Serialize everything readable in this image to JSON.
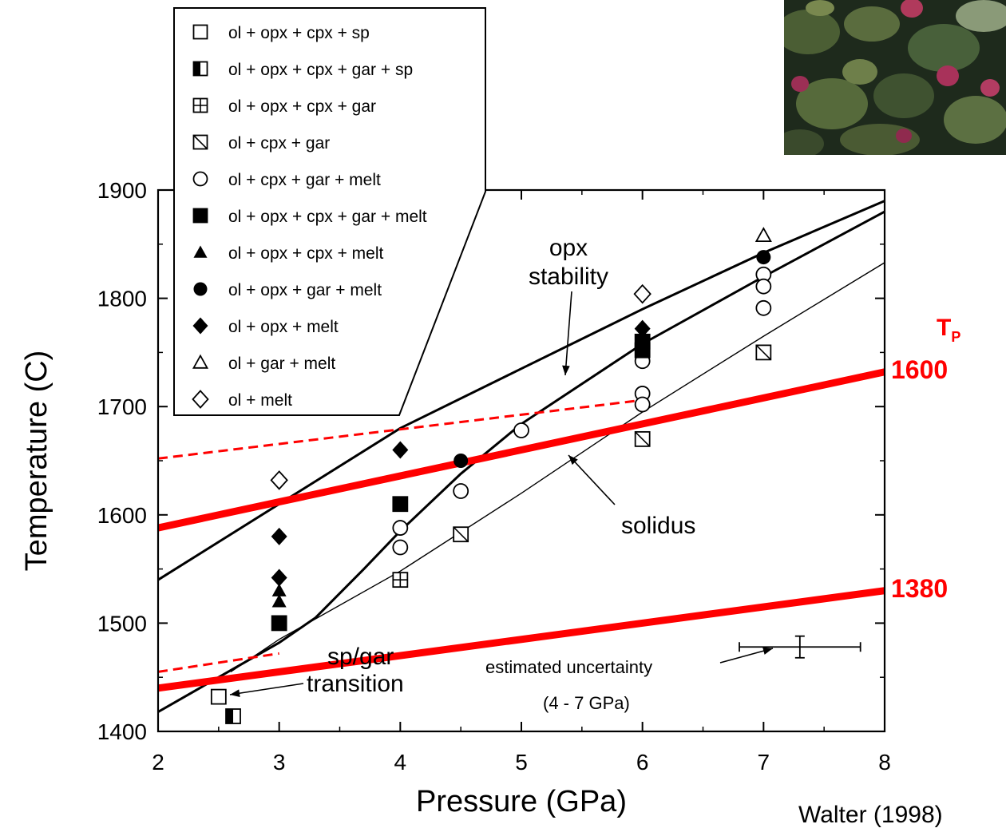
{
  "chart_data": {
    "type": "scatter",
    "xlabel": "Pressure (GPa)",
    "ylabel": "Temperature (C)",
    "xlim": [
      2,
      8
    ],
    "ylim": [
      1400,
      1900
    ],
    "xticks": [
      2,
      3,
      4,
      5,
      6,
      7,
      8
    ],
    "yticks": [
      1400,
      1500,
      1600,
      1700,
      1800,
      1900
    ],
    "grid": false,
    "legend_position": "top-left",
    "legend": [
      {
        "key": "ol_opx_cpx_sp",
        "label": "ol + opx + cpx + sp",
        "marker": "square-open"
      },
      {
        "key": "ol_opx_cpx_gar_sp",
        "label": "ol + opx + cpx + gar + sp",
        "marker": "square-half"
      },
      {
        "key": "ol_opx_cpx_gar",
        "label": "ol + opx + cpx + gar",
        "marker": "square-cross"
      },
      {
        "key": "ol_cpx_gar",
        "label": "ol + cpx + gar",
        "marker": "square-slash"
      },
      {
        "key": "ol_cpx_gar_melt",
        "label": "ol + cpx + gar + melt",
        "marker": "circle-open"
      },
      {
        "key": "ol_opx_cpx_gar_melt",
        "label": "ol + opx + cpx + gar + melt",
        "marker": "square-filled"
      },
      {
        "key": "ol_opx_cpx_melt",
        "label": "ol + opx + cpx + melt",
        "marker": "triangle-filled"
      },
      {
        "key": "ol_opx_gar_melt",
        "label": "ol + opx + gar + melt",
        "marker": "circle-filled"
      },
      {
        "key": "ol_opx_melt",
        "label": "ol + opx + melt",
        "marker": "diamond-filled"
      },
      {
        "key": "ol_gar_melt",
        "label": "ol + gar + melt",
        "marker": "triangle-open"
      },
      {
        "key": "ol_melt",
        "label": "ol + melt",
        "marker": "diamond-open"
      }
    ],
    "series": [
      {
        "key": "ol_opx_cpx_sp",
        "points": [
          [
            2.5,
            1432
          ]
        ]
      },
      {
        "key": "ol_opx_cpx_gar_sp",
        "points": [
          [
            2.62,
            1414
          ]
        ]
      },
      {
        "key": "ol_opx_cpx_gar",
        "points": [
          [
            4,
            1540
          ]
        ]
      },
      {
        "key": "ol_cpx_gar",
        "points": [
          [
            4.5,
            1582
          ],
          [
            6,
            1670
          ],
          [
            7,
            1750
          ]
        ]
      },
      {
        "key": "ol_cpx_gar_melt",
        "points": [
          [
            4,
            1588
          ],
          [
            4,
            1570
          ],
          [
            4.5,
            1622
          ],
          [
            5,
            1678
          ],
          [
            6,
            1742
          ],
          [
            6,
            1712
          ],
          [
            6,
            1702
          ],
          [
            7,
            1822
          ],
          [
            7,
            1811
          ],
          [
            7,
            1791
          ]
        ]
      },
      {
        "key": "ol_opx_cpx_gar_melt",
        "points": [
          [
            3,
            1500
          ],
          [
            4,
            1610
          ],
          [
            6,
            1752
          ],
          [
            6,
            1760
          ]
        ]
      },
      {
        "key": "ol_opx_cpx_melt",
        "points": [
          [
            3,
            1530
          ],
          [
            3,
            1520
          ]
        ]
      },
      {
        "key": "ol_opx_gar_melt",
        "points": [
          [
            4.5,
            1650
          ],
          [
            7,
            1838
          ]
        ]
      },
      {
        "key": "ol_opx_melt",
        "points": [
          [
            3,
            1580
          ],
          [
            3,
            1542
          ],
          [
            4,
            1660
          ],
          [
            6,
            1772
          ]
        ]
      },
      {
        "key": "ol_gar_melt",
        "points": [
          [
            7,
            1858
          ]
        ]
      },
      {
        "key": "ol_melt",
        "points": [
          [
            3,
            1632
          ],
          [
            6,
            1804
          ]
        ]
      }
    ],
    "curves": [
      {
        "name": "opx stability",
        "points": [
          [
            2,
            1540
          ],
          [
            3,
            1610
          ],
          [
            4,
            1680
          ],
          [
            5,
            1735
          ],
          [
            6,
            1790
          ],
          [
            7,
            1842
          ],
          [
            8,
            1890
          ]
        ]
      },
      {
        "name": "solidus",
        "points": [
          [
            2,
            1418
          ],
          [
            2.5,
            1450
          ],
          [
            3,
            1482
          ],
          [
            3.3,
            1505
          ],
          [
            3.7,
            1550
          ],
          [
            4,
            1585
          ],
          [
            4.5,
            1638
          ],
          [
            5,
            1684
          ],
          [
            6,
            1758
          ],
          [
            7,
            1820
          ],
          [
            8,
            1880
          ]
        ]
      },
      {
        "name": "",
        "points": [
          [
            2.6,
            1455
          ],
          [
            3,
            1485
          ],
          [
            4,
            1548
          ],
          [
            5,
            1620
          ],
          [
            6,
            1695
          ],
          [
            7,
            1765
          ],
          [
            8,
            1833
          ]
        ]
      }
    ],
    "adiabats": [
      {
        "potential_temperature": "1600",
        "solid": [
          [
            2,
            1588
          ],
          [
            8,
            1732
          ]
        ],
        "dashed": [
          [
            2,
            1652
          ],
          [
            6,
            1706
          ]
        ]
      },
      {
        "potential_temperature": "1380",
        "solid": [
          [
            2,
            1440
          ],
          [
            8,
            1530
          ]
        ],
        "dashed": [
          [
            2,
            1455
          ],
          [
            3,
            1472
          ]
        ]
      }
    ],
    "annotations": {
      "opx_stability_line1": "opx",
      "opx_stability_line2": "stability",
      "solidus": "solidus",
      "sp_gar_line1": "sp/gar",
      "sp_gar_line2": "transition",
      "uncertainty_line1": "estimated uncertainty",
      "uncertainty_line2": "(4 - 7 GPa)",
      "tp_main": "T",
      "tp_sub": "P",
      "tp_high": "1600",
      "tp_low": "1380"
    },
    "error_bar": {
      "x": 7.3,
      "y": 1478,
      "x_err": 0.5,
      "y_err": 10
    },
    "colors": {
      "adiabat": "#ff0000",
      "axes": "#000000"
    }
  },
  "credit": "Walter (1998)"
}
